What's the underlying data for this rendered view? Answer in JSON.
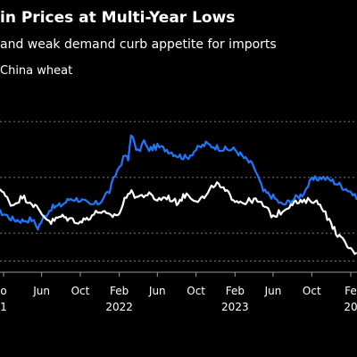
{
  "header": {
    "title": "in Prices at Multi-Year Lows",
    "subtitle": "and weak demand curb appetite for imports",
    "legend_label": "China wheat"
  },
  "colors": {
    "background": "#000000",
    "series_blue": "#1f77ff",
    "series_white": "#ffffff",
    "grid": "#777777"
  },
  "chart_data": {
    "type": "line",
    "title": "in Prices at Multi-Year Lows",
    "subtitle": "and weak demand curb appetite for imports",
    "xlabel": "",
    "ylabel": "",
    "grid": "horizontal dashed",
    "x_ticks": [
      {
        "label": "o",
        "date": "2021-02-01"
      },
      {
        "label": "Jun",
        "date": "2021-06-01"
      },
      {
        "label": "Oct",
        "date": "2021-10-01"
      },
      {
        "label": "Feb",
        "date": "2022-02-01"
      },
      {
        "label": "Jun",
        "date": "2022-06-01"
      },
      {
        "label": "Oct",
        "date": "2022-10-01"
      },
      {
        "label": "Feb",
        "date": "2023-02-01"
      },
      {
        "label": "Jun",
        "date": "2023-06-01"
      },
      {
        "label": "Oct",
        "date": "2023-10-01"
      },
      {
        "label": "Fe",
        "date": "2024-02-01"
      }
    ],
    "year_labels": [
      {
        "label": "1",
        "date": "2021-02-01"
      },
      {
        "label": "2022",
        "date": "2022-02-01"
      },
      {
        "label": "2023",
        "date": "2023-02-01"
      },
      {
        "label": "20",
        "date": "2024-02-01"
      }
    ],
    "series": [
      {
        "name": "",
        "color": "#1f77ff",
        "points": [
          [
            "2021-01-01",
            58
          ],
          [
            "2021-02-01",
            57
          ],
          [
            "2021-03-01",
            55
          ],
          [
            "2021-04-01",
            54.5
          ],
          [
            "2021-05-01",
            55
          ],
          [
            "2021-05-20",
            52
          ],
          [
            "2021-06-10",
            56
          ],
          [
            "2021-07-01",
            59
          ],
          [
            "2021-08-01",
            60
          ],
          [
            "2021-09-01",
            62.5
          ],
          [
            "2021-10-01",
            62
          ],
          [
            "2021-11-01",
            60
          ],
          [
            "2021-12-01",
            61
          ],
          [
            "2021-12-20",
            64
          ],
          [
            "2022-01-01",
            65
          ],
          [
            "2022-01-20",
            71
          ],
          [
            "2022-02-01",
            74
          ],
          [
            "2022-02-20",
            78
          ],
          [
            "2022-03-01",
            76
          ],
          [
            "2022-03-10",
            86
          ],
          [
            "2022-03-20",
            82
          ],
          [
            "2022-04-01",
            79
          ],
          [
            "2022-04-20",
            83
          ],
          [
            "2022-05-01",
            80
          ],
          [
            "2022-06-01",
            81
          ],
          [
            "2022-07-01",
            80
          ],
          [
            "2022-08-01",
            78
          ],
          [
            "2022-09-01",
            77
          ],
          [
            "2022-10-01",
            80
          ],
          [
            "2022-11-01",
            82
          ],
          [
            "2022-12-01",
            81
          ],
          [
            "2023-01-01",
            80
          ],
          [
            "2023-02-01",
            80
          ],
          [
            "2023-03-01",
            77
          ],
          [
            "2023-04-01",
            74
          ],
          [
            "2023-05-01",
            65
          ],
          [
            "2023-06-01",
            63
          ],
          [
            "2023-07-01",
            60
          ],
          [
            "2023-08-01",
            62
          ],
          [
            "2023-09-01",
            64
          ],
          [
            "2023-10-01",
            69
          ],
          [
            "2023-11-01",
            70
          ],
          [
            "2023-12-01",
            69
          ],
          [
            "2024-01-01",
            67
          ],
          [
            "2024-02-01",
            65
          ],
          [
            "2024-02-20",
            62
          ]
        ]
      },
      {
        "name": "China wheat",
        "color": "#ffffff",
        "points": [
          [
            "2021-01-01",
            69
          ],
          [
            "2021-02-01",
            64
          ],
          [
            "2021-03-01",
            60
          ],
          [
            "2021-04-01",
            63
          ],
          [
            "2021-05-01",
            61
          ],
          [
            "2021-06-01",
            57
          ],
          [
            "2021-07-01",
            54
          ],
          [
            "2021-08-01",
            56
          ],
          [
            "2021-09-01",
            55
          ],
          [
            "2021-10-01",
            54
          ],
          [
            "2021-11-01",
            56
          ],
          [
            "2021-12-01",
            58
          ],
          [
            "2022-01-01",
            56
          ],
          [
            "2022-02-01",
            57
          ],
          [
            "2022-03-01",
            65
          ],
          [
            "2022-04-01",
            63
          ],
          [
            "2022-05-01",
            64
          ],
          [
            "2022-06-01",
            62
          ],
          [
            "2022-07-01",
            63
          ],
          [
            "2022-08-01",
            61
          ],
          [
            "2022-09-01",
            64
          ],
          [
            "2022-10-01",
            62
          ],
          [
            "2022-11-01",
            63
          ],
          [
            "2022-12-01",
            68
          ],
          [
            "2023-01-01",
            65
          ],
          [
            "2023-02-01",
            62
          ],
          [
            "2023-03-01",
            61
          ],
          [
            "2023-04-01",
            62
          ],
          [
            "2023-05-01",
            60
          ],
          [
            "2023-06-01",
            56
          ],
          [
            "2023-07-01",
            58
          ],
          [
            "2023-08-01",
            61
          ],
          [
            "2023-09-01",
            61
          ],
          [
            "2023-10-01",
            62
          ],
          [
            "2023-11-01",
            60
          ],
          [
            "2023-12-01",
            53
          ],
          [
            "2024-01-01",
            48
          ],
          [
            "2024-02-01",
            44
          ],
          [
            "2024-02-20",
            43
          ]
        ]
      }
    ],
    "gridlines": [
      90,
      70,
      50,
      40
    ],
    "ylim": [
      36,
      100
    ]
  }
}
